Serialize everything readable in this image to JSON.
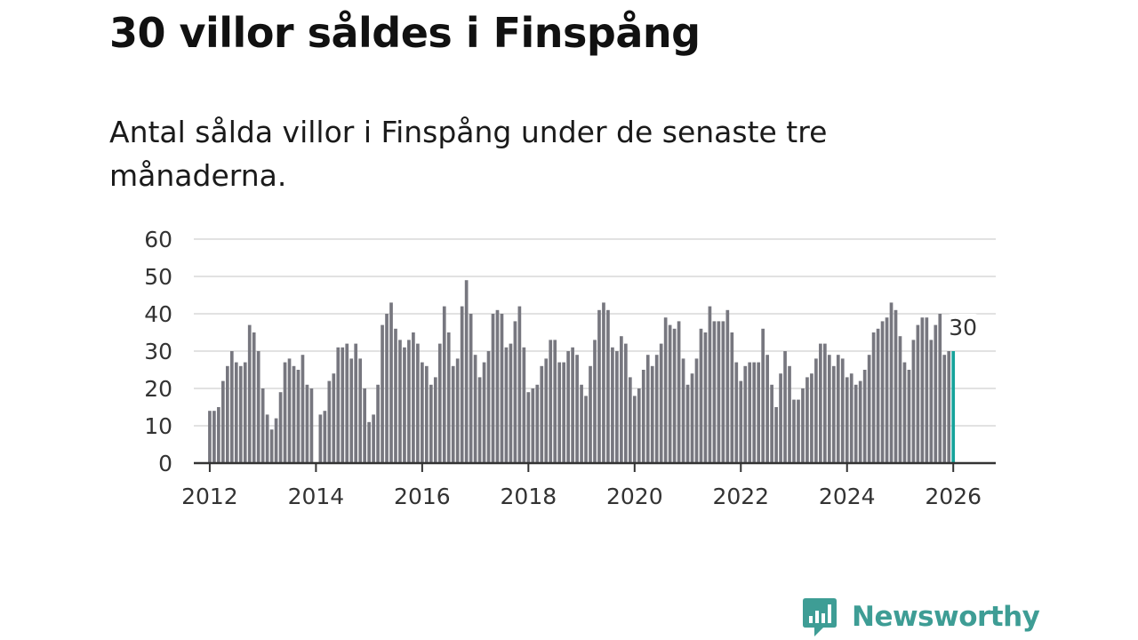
{
  "header": {
    "title": "30 villor såldes i Finspång",
    "subtitle": "Antal sålda villor i Finspång under de senaste tre månaderna."
  },
  "brand": {
    "name": "Newsworthy",
    "icon": "newsworthy-logo-icon",
    "color": "#3e9d95"
  },
  "colors": {
    "bar": "#77777f",
    "highlight": "#16a39b",
    "grid": "#d9d9d9",
    "axis": "#333333"
  },
  "chart_data": {
    "type": "bar",
    "title": "30 villor såldes i Finspång",
    "subtitle": "Antal sålda villor i Finspång under de senaste tre månaderna.",
    "xlabel": "",
    "ylabel": "",
    "ylim": [
      0,
      60
    ],
    "xlim": [
      2011.7,
      2026.8
    ],
    "y_ticks": [
      0,
      10,
      20,
      30,
      40,
      50,
      60
    ],
    "x_ticks": [
      "2012",
      "2014",
      "2016",
      "2018",
      "2020",
      "2022",
      "2024",
      "2026"
    ],
    "grid": true,
    "legend": "none",
    "start": {
      "year": 2012,
      "month": 1
    },
    "annotation": {
      "label": "30",
      "value": 30,
      "index": 169
    },
    "values": [
      14,
      14,
      15,
      22,
      26,
      30,
      27,
      26,
      27,
      37,
      35,
      30,
      20,
      13,
      9,
      12,
      19,
      27,
      28,
      26,
      25,
      29,
      21,
      20,
      null,
      13,
      14,
      22,
      24,
      31,
      31,
      32,
      28,
      32,
      28,
      20,
      11,
      13,
      21,
      37,
      40,
      43,
      36,
      33,
      31,
      33,
      35,
      32,
      27,
      26,
      21,
      23,
      32,
      42,
      35,
      26,
      28,
      42,
      49,
      40,
      29,
      23,
      27,
      30,
      40,
      41,
      40,
      31,
      32,
      38,
      42,
      31,
      19,
      20,
      21,
      26,
      28,
      33,
      33,
      27,
      27,
      30,
      31,
      29,
      21,
      18,
      26,
      33,
      41,
      43,
      41,
      31,
      30,
      34,
      32,
      23,
      18,
      20,
      25,
      29,
      26,
      29,
      32,
      39,
      37,
      36,
      38,
      28,
      21,
      24,
      28,
      36,
      35,
      42,
      38,
      38,
      38,
      41,
      35,
      27,
      22,
      26,
      27,
      27,
      27,
      36,
      29,
      21,
      15,
      24,
      30,
      26,
      17,
      17,
      20,
      23,
      24,
      28,
      32,
      32,
      29,
      26,
      29,
      28,
      23,
      24,
      21,
      22,
      25,
      29,
      35,
      36,
      38,
      39,
      43,
      41,
      34,
      27,
      25,
      33,
      37,
      39,
      39,
      33,
      37,
      40,
      29,
      30,
      30
    ]
  }
}
